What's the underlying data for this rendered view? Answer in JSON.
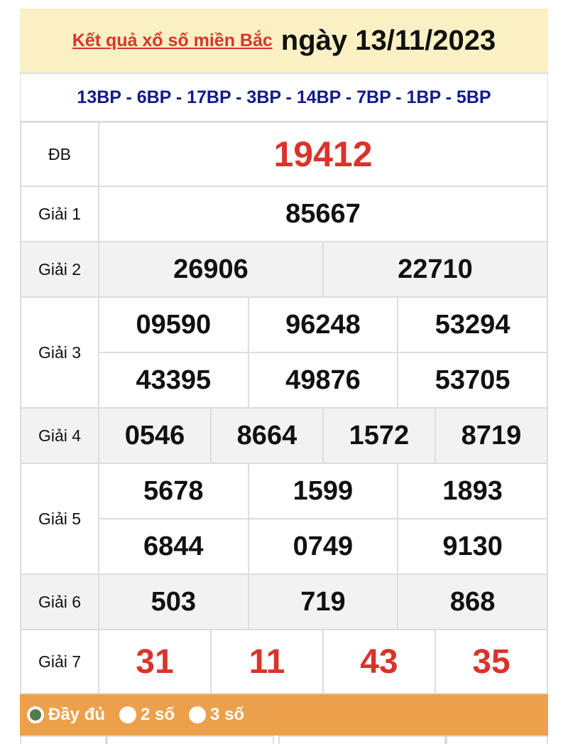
{
  "header": {
    "title_link": "Kết quả xổ số miền Bắc",
    "date": "ngày 13/11/2023"
  },
  "codes": "13BP - 6BP - 17BP - 3BP - 14BP - 7BP - 1BP - 5BP",
  "prizes": {
    "db": {
      "label": "ĐB",
      "numbers": [
        "19412"
      ]
    },
    "g1": {
      "label": "Giải 1",
      "numbers": [
        "85667"
      ]
    },
    "g2": {
      "label": "Giải 2",
      "numbers": [
        "26906",
        "22710"
      ]
    },
    "g3": {
      "label": "Giải 3",
      "numbers": [
        "09590",
        "96248",
        "53294",
        "43395",
        "49876",
        "53705"
      ]
    },
    "g4": {
      "label": "Giải 4",
      "numbers": [
        "0546",
        "8664",
        "1572",
        "8719"
      ]
    },
    "g5": {
      "label": "Giải 5",
      "numbers": [
        "5678",
        "1599",
        "1893",
        "6844",
        "0749",
        "9130"
      ]
    },
    "g6": {
      "label": "Giải 6",
      "numbers": [
        "503",
        "719",
        "868"
      ]
    },
    "g7": {
      "label": "Giải 7",
      "numbers": [
        "31",
        "11",
        "43",
        "35"
      ]
    }
  },
  "options": [
    {
      "label": "Đầy đủ",
      "selected": true
    },
    {
      "label": "2 số",
      "selected": false
    },
    {
      "label": "3 số",
      "selected": false
    }
  ],
  "colors": {
    "accent_red": "#d9342b",
    "codes_blue": "#131b8a",
    "header_bg": "#faf0c4",
    "bar_orange": "#eda04b"
  }
}
